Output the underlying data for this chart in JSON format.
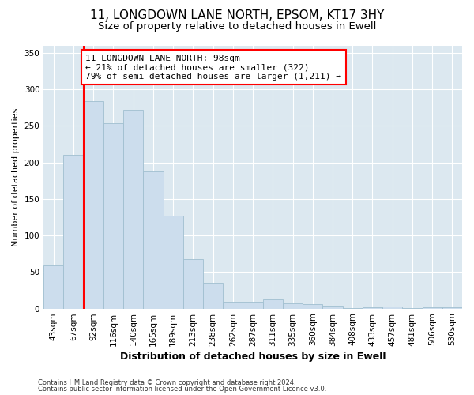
{
  "title1": "11, LONGDOWN LANE NORTH, EPSOM, KT17 3HY",
  "title2": "Size of property relative to detached houses in Ewell",
  "xlabel": "Distribution of detached houses by size in Ewell",
  "ylabel": "Number of detached properties",
  "categories": [
    "43sqm",
    "67sqm",
    "92sqm",
    "116sqm",
    "140sqm",
    "165sqm",
    "189sqm",
    "213sqm",
    "238sqm",
    "262sqm",
    "287sqm",
    "311sqm",
    "335sqm",
    "360sqm",
    "384sqm",
    "408sqm",
    "433sqm",
    "457sqm",
    "481sqm",
    "506sqm",
    "530sqm"
  ],
  "values": [
    59,
    210,
    284,
    253,
    272,
    188,
    127,
    68,
    35,
    9,
    9,
    13,
    7,
    6,
    4,
    1,
    2,
    3,
    1,
    2,
    2
  ],
  "bar_color": "#ccdded",
  "bar_edge_color": "#a0bfd0",
  "red_line_index": 2,
  "annotation_text": "11 LONGDOWN LANE NORTH: 98sqm\n← 21% of detached houses are smaller (322)\n79% of semi-detached houses are larger (1,211) →",
  "annotation_box_color": "white",
  "annotation_box_edge": "red",
  "ylim": [
    0,
    360
  ],
  "yticks": [
    0,
    50,
    100,
    150,
    200,
    250,
    300,
    350
  ],
  "footer1": "Contains HM Land Registry data © Crown copyright and database right 2024.",
  "footer2": "Contains public sector information licensed under the Open Government Licence v3.0.",
  "bg_color": "#ffffff",
  "plot_bg_color": "#dce8f0",
  "grid_color": "white",
  "title1_fontsize": 11,
  "title2_fontsize": 9.5,
  "xlabel_fontsize": 9,
  "ylabel_fontsize": 8,
  "tick_fontsize": 7.5,
  "footer_fontsize": 6,
  "annot_fontsize": 8
}
